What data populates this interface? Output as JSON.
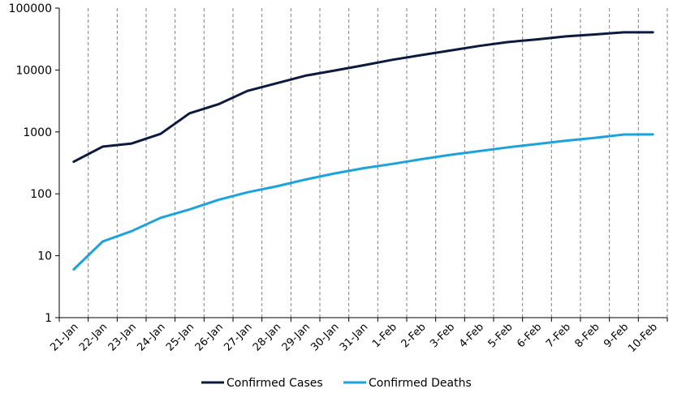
{
  "chart_data": {
    "type": "line",
    "title": "",
    "xlabel": "",
    "ylabel": "",
    "y_scale": "log",
    "ylim": [
      1,
      100000
    ],
    "y_ticks": [
      "1",
      "10",
      "100",
      "1000",
      "10000",
      "100000"
    ],
    "grid": {
      "vertical": "dashed",
      "horizontal": "none"
    },
    "legend_position": "bottom-center",
    "categories": [
      "21-Jan",
      "22-Jan",
      "23-Jan",
      "24-Jan",
      "25-Jan",
      "26-Jan",
      "27-Jan",
      "28-Jan",
      "29-Jan",
      "30-Jan",
      "31-Jan",
      "1-Feb",
      "2-Feb",
      "3-Feb",
      "4-Feb",
      "5-Feb",
      "6-Feb",
      "7-Feb",
      "8-Feb",
      "9-Feb",
      "10-Feb"
    ],
    "series": [
      {
        "name": "Confirmed Cases",
        "color": "#0c1a3f",
        "values": [
          330,
          580,
          650,
          930,
          2000,
          2800,
          4600,
          6100,
          8100,
          9800,
          11900,
          14600,
          17400,
          20600,
          24500,
          28300,
          31200,
          34900,
          37600,
          40600,
          40600
        ]
      },
      {
        "name": "Confirmed Deaths",
        "color": "#1aa3dd",
        "values": [
          6,
          17,
          25,
          41,
          56,
          80,
          106,
          132,
          170,
          213,
          259,
          304,
          362,
          426,
          490,
          564,
          636,
          722,
          803,
          908,
          910
        ]
      }
    ]
  }
}
